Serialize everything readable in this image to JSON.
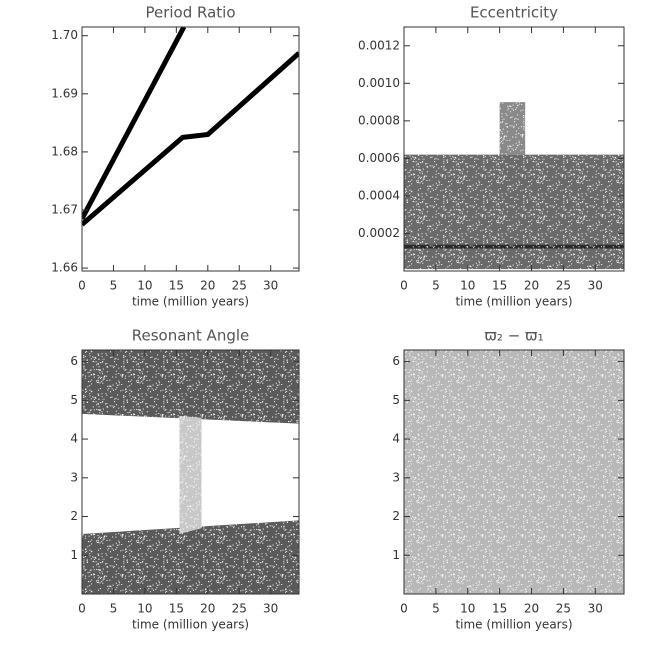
{
  "chart_data": [
    {
      "type": "line",
      "title": "Period Ratio",
      "xlabel": "time (million years)",
      "xlim": [
        0,
        34.5
      ],
      "xticks": [
        0,
        5,
        10,
        15,
        20,
        25,
        30
      ],
      "ylim": [
        1.6595,
        1.7015
      ],
      "yticks": [
        1.66,
        1.67,
        1.68,
        1.69,
        {
          "value": 1.7,
          "label": "1.70"
        }
      ],
      "series": [
        {
          "color": "#000000",
          "x": [
            0,
            16.2
          ],
          "values": [
            1.6685,
            1.7015
          ]
        },
        {
          "color": "#000000",
          "x": [
            0,
            16,
            20,
            34.5
          ],
          "values": [
            1.6675,
            1.6825,
            1.683,
            1.697
          ]
        }
      ]
    },
    {
      "type": "band",
      "title": "Eccentricity",
      "xlabel": "time (million years)",
      "xlim": [
        0,
        34.5
      ],
      "xticks": [
        0,
        5,
        10,
        15,
        20,
        25,
        30
      ],
      "ylim": [
        0,
        0.0013
      ],
      "yticks": [
        0.0002,
        0.0004,
        0.0006,
        0.0008,
        {
          "value": 0.001,
          "label": "0.0010"
        },
        0.0012
      ],
      "series": [
        {
          "color": "#6a6a6a",
          "x": [
            0,
            34.5
          ],
          "low": [
            1e-05,
            1e-05
          ],
          "high": [
            0.00062,
            0.00062
          ]
        },
        {
          "color": "#8a8a8a",
          "x": [
            15,
            19
          ],
          "low": [
            0.00062,
            0.00062
          ],
          "high": [
            0.0009,
            0.0009
          ]
        },
        {
          "color": "#2a2a2a",
          "x": [
            0,
            34.5
          ],
          "low": [
            0.00012,
            0.00012
          ],
          "high": [
            0.00014,
            0.00014
          ]
        }
      ]
    },
    {
      "type": "band",
      "title": "Resonant Angle",
      "xlabel": "time (million years)",
      "xlim": [
        0,
        34.5
      ],
      "xticks": [
        0,
        5,
        10,
        15,
        20,
        25,
        30
      ],
      "ylim": [
        0,
        6.3
      ],
      "yticks": [
        1,
        2,
        3,
        4,
        5,
        6
      ],
      "series": [
        {
          "color": "#5a5a5a",
          "x": [
            0,
            34.5
          ],
          "low": [
            0,
            0
          ],
          "high": [
            1.55,
            1.9
          ]
        },
        {
          "color": "#5a5a5a",
          "x": [
            0,
            34.5
          ],
          "low": [
            4.65,
            4.4
          ],
          "high": [
            6.3,
            6.3
          ]
        },
        {
          "color": "#c8c8c8",
          "x": [
            15.5,
            19
          ],
          "low": [
            1.55,
            1.7
          ],
          "high": [
            4.6,
            4.55
          ]
        }
      ]
    },
    {
      "type": "band",
      "title": "ϖ₂ − ϖ₁",
      "xlabel": "time (million years)",
      "xlim": [
        0,
        34.5
      ],
      "xticks": [
        0,
        5,
        10,
        15,
        20,
        25,
        30
      ],
      "ylim": [
        0,
        6.3
      ],
      "yticks": [
        1,
        2,
        3,
        4,
        5,
        6
      ],
      "series": [
        {
          "color": "#b8b8b8",
          "x": [
            0,
            34.5
          ],
          "low": [
            0,
            0
          ],
          "high": [
            6.3,
            6.3
          ]
        }
      ]
    }
  ]
}
